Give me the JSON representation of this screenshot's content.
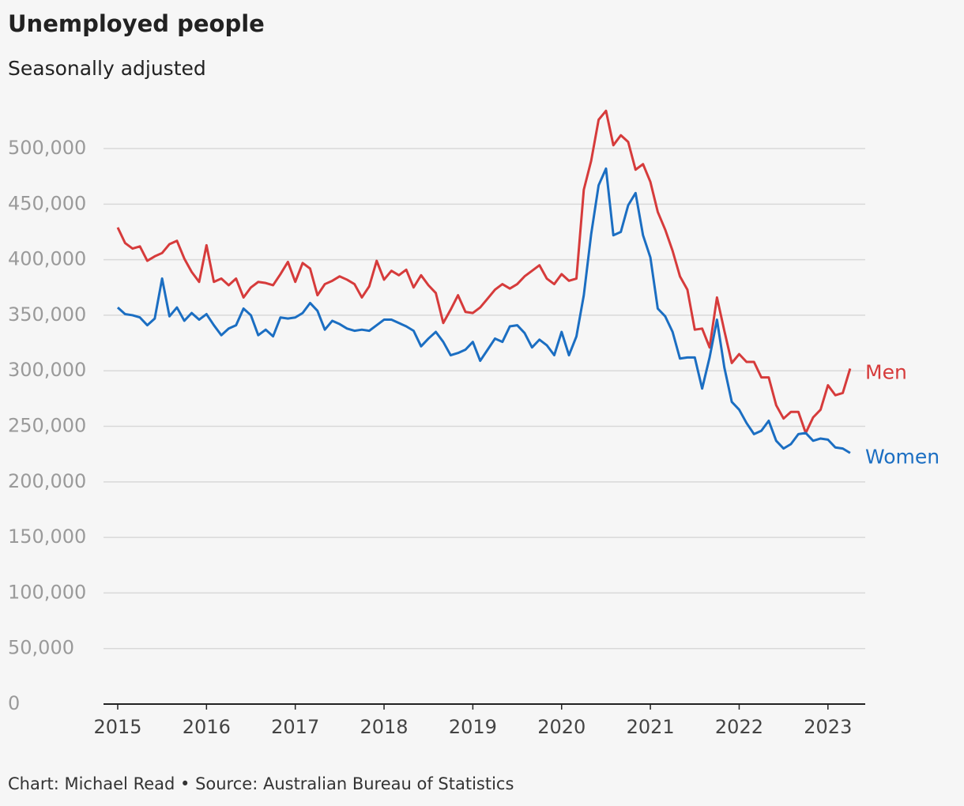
{
  "chart_data": {
    "type": "line",
    "title": "Unemployed people",
    "subtitle": "Seasonally adjusted",
    "source": "Chart: Michael Read • Source: Australian Bureau of Statistics",
    "x": [
      2015,
      2015.083,
      2015.167,
      2015.25,
      2015.333,
      2015.417,
      2015.5,
      2015.583,
      2015.667,
      2015.75,
      2015.833,
      2015.917,
      2016,
      2016.083,
      2016.167,
      2016.25,
      2016.333,
      2016.417,
      2016.5,
      2016.583,
      2016.667,
      2016.75,
      2016.833,
      2016.917,
      2017,
      2017.083,
      2017.167,
      2017.25,
      2017.333,
      2017.417,
      2017.5,
      2017.583,
      2017.667,
      2017.75,
      2017.833,
      2017.917,
      2018,
      2018.083,
      2018.167,
      2018.25,
      2018.333,
      2018.417,
      2018.5,
      2018.583,
      2018.667,
      2018.75,
      2018.833,
      2018.917,
      2019,
      2019.083,
      2019.167,
      2019.25,
      2019.333,
      2019.417,
      2019.5,
      2019.583,
      2019.667,
      2019.75,
      2019.833,
      2019.917,
      2020,
      2020.083,
      2020.167,
      2020.25,
      2020.333,
      2020.417,
      2020.5,
      2020.583,
      2020.667,
      2020.75,
      2020.833,
      2020.917,
      2021,
      2021.083,
      2021.167,
      2021.25,
      2021.333,
      2021.417,
      2021.5,
      2021.583,
      2021.667,
      2021.75,
      2021.833,
      2021.917,
      2022,
      2022.083,
      2022.167,
      2022.25,
      2022.333,
      2022.417,
      2022.5,
      2022.583,
      2022.667,
      2022.75,
      2022.833,
      2022.917,
      2023,
      2023.083,
      2023.167,
      2023.25
    ],
    "series": [
      {
        "name": "Men",
        "color": "#d63b3b",
        "values": [
          429000,
          415000,
          410000,
          412000,
          399000,
          403000,
          406000,
          414000,
          417000,
          401000,
          389000,
          380000,
          413000,
          380000,
          383000,
          377000,
          383000,
          366000,
          375000,
          380000,
          379000,
          377000,
          387000,
          398000,
          380000,
          397000,
          392000,
          368000,
          378000,
          381000,
          385000,
          382000,
          378000,
          366000,
          376000,
          399000,
          382000,
          390000,
          386000,
          391000,
          375000,
          386000,
          377000,
          370000,
          343000,
          355000,
          368000,
          353000,
          352000,
          357000,
          365000,
          373000,
          378000,
          374000,
          378000,
          385000,
          390000,
          395000,
          383000,
          378000,
          387000,
          381000,
          383000,
          463000,
          489000,
          526000,
          534000,
          503000,
          512000,
          506000,
          481000,
          486000,
          470000,
          443000,
          427000,
          408000,
          385000,
          373000,
          337000,
          338000,
          321000,
          366000,
          336000,
          307000,
          315000,
          308000,
          308000,
          294000,
          294000,
          269000,
          257000,
          263000,
          263000,
          244000,
          258000,
          265000,
          287000,
          278000,
          280000,
          302000
        ]
      },
      {
        "name": "Women",
        "color": "#1b6ec2",
        "values": [
          357000,
          351000,
          350000,
          348000,
          341000,
          347000,
          383000,
          349000,
          357000,
          345000,
          352000,
          346000,
          351000,
          341000,
          332000,
          338000,
          341000,
          356000,
          350000,
          332000,
          337000,
          331000,
          348000,
          347000,
          348000,
          352000,
          361000,
          354000,
          337000,
          345000,
          342000,
          338000,
          336000,
          337000,
          336000,
          341000,
          346000,
          346000,
          343000,
          340000,
          336000,
          322000,
          329000,
          335000,
          326000,
          314000,
          316000,
          319000,
          326000,
          309000,
          319000,
          329000,
          326000,
          340000,
          341000,
          334000,
          321000,
          328000,
          323000,
          314000,
          335000,
          314000,
          331000,
          368000,
          423000,
          467000,
          482000,
          422000,
          425000,
          449000,
          460000,
          422000,
          402000,
          356000,
          349000,
          335000,
          311000,
          312000,
          312000,
          284000,
          312000,
          346000,
          303000,
          272000,
          265000,
          253000,
          243000,
          246000,
          255000,
          237000,
          230000,
          234000,
          243000,
          244000,
          237000,
          239000,
          238000,
          231000,
          230000,
          226000
        ]
      }
    ],
    "xlim": [
      2014.84,
      2023.42
    ],
    "xticks": [
      2015,
      2016,
      2017,
      2018,
      2019,
      2020,
      2021,
      2022,
      2023
    ],
    "ylim": [
      0,
      540000
    ],
    "yticks": [
      0,
      {
        "value": 50000,
        "label": "50,000"
      },
      {
        "value": 100000,
        "label": "100,000"
      },
      {
        "value": 150000,
        "label": "150,000"
      },
      {
        "value": 200000,
        "label": "200,000"
      },
      {
        "value": 250000,
        "label": "250,000"
      },
      {
        "value": 300000,
        "label": "300,000"
      },
      {
        "value": 350000,
        "label": "350,000"
      },
      {
        "value": 400000,
        "label": "400,000"
      },
      {
        "value": 450000,
        "label": "450,000"
      },
      {
        "value": 500000,
        "label": "500,000"
      }
    ],
    "grid": true
  }
}
